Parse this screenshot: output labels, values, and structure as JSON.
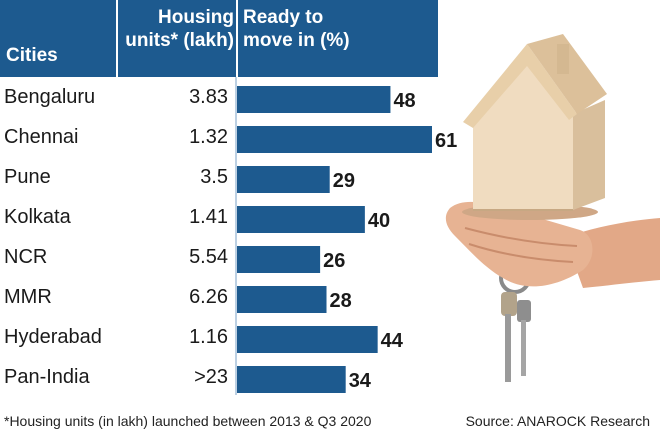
{
  "header": {
    "cities_label": "Cities",
    "units_label_1": "Housing",
    "units_label_2": "units* (lakh)",
    "ready_label_1": "Ready to",
    "ready_label_2": "move in (%)"
  },
  "chart_data": {
    "type": "bar",
    "orientation": "horizontal",
    "categories": [
      "Bengaluru",
      "Chennai",
      "Pune",
      "Kolkata",
      "NCR",
      "MMR",
      "Hyderabad",
      "Pan-India"
    ],
    "housing_units_lakh": [
      "3.83",
      "1.32",
      "3.5",
      "1.41",
      "5.54",
      "6.26",
      "1.16",
      ">23"
    ],
    "series": [
      {
        "values": [
          48,
          61,
          29,
          40,
          26,
          28,
          44,
          34
        ]
      }
    ],
    "xlim": [
      0,
      61
    ],
    "bar_color": "#1d5a8f"
  },
  "rows": [
    {
      "city": "Bengaluru",
      "units": "3.83",
      "value_label": "48"
    },
    {
      "city": "Chennai",
      "units": "1.32",
      "value_label": "61"
    },
    {
      "city": "Pune",
      "units": "3.5",
      "value_label": "29"
    },
    {
      "city": "Kolkata",
      "units": "1.41",
      "value_label": "40"
    },
    {
      "city": "NCR",
      "units": "5.54",
      "value_label": "26"
    },
    {
      "city": "MMR",
      "units": "6.26",
      "value_label": "28"
    },
    {
      "city": "Hyderabad",
      "units": "1.16",
      "value_label": "44"
    },
    {
      "city": "Pan-India",
      "units": ">23",
      "value_label": "34"
    }
  ],
  "footnote": "*Housing units (in lakh) launched between 2013 & Q3 2020",
  "source": "Source: ANAROCK Research",
  "colors": {
    "header_bg": "#1d5a8f",
    "bar": "#1d5a8f",
    "row_divider": "#bcd0e3"
  }
}
